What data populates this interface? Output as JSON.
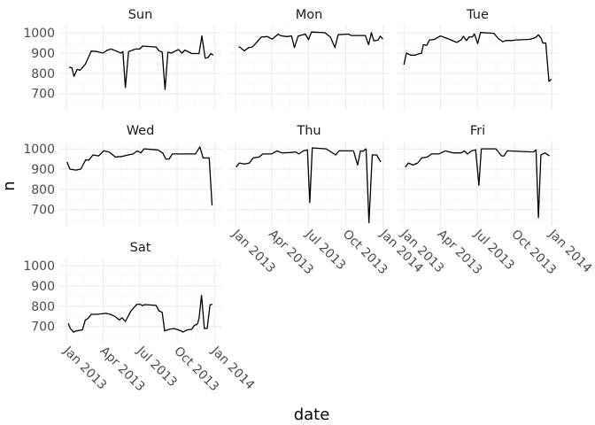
{
  "chart_data": {
    "type": "line",
    "xlabel": "date",
    "ylabel": "n",
    "ylim": [
      620,
      1040
    ],
    "xlim": [
      "2012-12-14",
      "2014-01-18"
    ],
    "yticks": [
      700,
      800,
      900,
      1000
    ],
    "xticks": [
      {
        "date": "2013-01-01",
        "label": "Jan 2013"
      },
      {
        "date": "2013-04-01",
        "label": "Apr 2013"
      },
      {
        "date": "2013-07-01",
        "label": "Jul 2013"
      },
      {
        "date": "2013-10-01",
        "label": "Oct 2013"
      },
      {
        "date": "2014-01-01",
        "label": "Jan 2014"
      }
    ],
    "grid": true,
    "line_color": "#000000",
    "facets": [
      {
        "name": "Sun",
        "x": [
          "2013-01-07",
          "2013-01-14",
          "2013-01-19",
          "2013-01-27",
          "2013-02-03",
          "2013-02-16",
          "2013-03-03",
          "2013-03-17",
          "2013-04-01",
          "2013-04-12",
          "2013-04-21",
          "2013-05-04",
          "2013-05-15",
          "2013-05-20",
          "2013-05-26",
          "2013-06-03",
          "2013-06-09",
          "2013-06-20",
          "2013-06-30",
          "2013-07-08",
          "2013-08-10",
          "2013-08-17",
          "2013-08-25",
          "2013-09-01",
          "2013-09-08",
          "2013-09-16",
          "2013-10-04",
          "2013-10-13",
          "2013-10-20",
          "2013-11-06",
          "2013-11-24",
          "2013-12-01",
          "2013-12-09",
          "2013-12-16",
          "2013-12-23",
          "2013-12-29"
        ],
        "y": [
          830,
          828,
          785,
          820,
          815,
          845,
          910,
          908,
          900,
          915,
          920,
          910,
          900,
          908,
          730,
          908,
          912,
          920,
          920,
          935,
          930,
          912,
          905,
          720,
          905,
          900,
          918,
          900,
          915,
          898,
          898,
          985,
          875,
          878,
          898,
          890
        ]
      },
      {
        "name": "Mon",
        "x": [
          "2013-01-09",
          "2013-01-14",
          "2013-01-23",
          "2013-02-03",
          "2013-02-12",
          "2013-02-20",
          "2013-03-06",
          "2013-03-21",
          "2013-04-02",
          "2013-04-17",
          "2013-04-22",
          "2013-05-07",
          "2013-05-20",
          "2013-05-27",
          "2013-06-05",
          "2013-06-23",
          "2013-07-01",
          "2013-07-08",
          "2013-08-10",
          "2013-08-24",
          "2013-09-04",
          "2013-09-12",
          "2013-10-07",
          "2013-10-14",
          "2013-10-29",
          "2013-11-18",
          "2013-11-26",
          "2013-12-03",
          "2013-12-09",
          "2013-12-19",
          "2013-12-25",
          "2013-12-31"
        ],
        "y": [
          932,
          927,
          911,
          927,
          930,
          947,
          979,
          982,
          969,
          994,
          987,
          982,
          985,
          927,
          984,
          994,
          967,
          1004,
          1001,
          979,
          927,
          991,
          994,
          987,
          987,
          987,
          942,
          1001,
          961,
          964,
          984,
          969
        ]
      },
      {
        "name": "Tue",
        "x": [
          "2013-01-01",
          "2013-01-07",
          "2013-01-18",
          "2013-01-29",
          "2013-02-09",
          "2013-02-13",
          "2013-02-18",
          "2013-02-26",
          "2013-03-05",
          "2013-03-17",
          "2013-04-01",
          "2013-04-12",
          "2013-04-27",
          "2013-05-11",
          "2013-05-22",
          "2013-05-28",
          "2013-06-04",
          "2013-06-11",
          "2013-06-19",
          "2013-06-24",
          "2013-07-02",
          "2013-07-09",
          "2013-08-11",
          "2013-08-22",
          "2013-09-02",
          "2013-09-09",
          "2013-09-24",
          "2013-10-05",
          "2013-11-07",
          "2013-11-14",
          "2013-11-22",
          "2013-11-29",
          "2013-12-06",
          "2013-12-10",
          "2013-12-17",
          "2013-12-25",
          "2013-12-31"
        ],
        "y": [
          843,
          900,
          890,
          890,
          898,
          898,
          942,
          938,
          965,
          968,
          985,
          977,
          965,
          953,
          965,
          983,
          962,
          980,
          980,
          995,
          947,
          1002,
          998,
          972,
          956,
          962,
          962,
          965,
          968,
          972,
          977,
          990,
          972,
          950,
          950,
          760,
          772
        ]
      },
      {
        "name": "Wed",
        "x": [
          "2013-01-02",
          "2013-01-09",
          "2013-01-24",
          "2013-02-05",
          "2013-02-17",
          "2013-02-25",
          "2013-03-07",
          "2013-03-21",
          "2013-04-02",
          "2013-04-16",
          "2013-05-01",
          "2013-05-17",
          "2013-06-02",
          "2013-06-14",
          "2013-06-25",
          "2013-07-03",
          "2013-07-11",
          "2013-08-14",
          "2013-08-26",
          "2013-09-03",
          "2013-09-11",
          "2013-09-19",
          "2013-11-15",
          "2013-11-26",
          "2013-12-04",
          "2013-12-19",
          "2013-12-26"
        ],
        "y": [
          935,
          900,
          895,
          900,
          945,
          945,
          970,
          965,
          990,
          985,
          960,
          962,
          970,
          975,
          990,
          980,
          1000,
          995,
          980,
          950,
          950,
          975,
          975,
          1010,
          955,
          955,
          720
        ]
      },
      {
        "name": "Thu",
        "x": [
          "2013-01-03",
          "2013-01-11",
          "2013-01-24",
          "2013-02-05",
          "2013-02-14",
          "2013-03-01",
          "2013-03-10",
          "2013-03-31",
          "2013-04-14",
          "2013-04-26",
          "2013-05-16",
          "2013-05-30",
          "2013-06-07",
          "2013-06-18",
          "2013-06-28",
          "2013-07-04",
          "2013-07-10",
          "2013-08-13",
          "2013-09-06",
          "2013-09-14",
          "2013-10-20",
          "2013-10-30",
          "2013-11-06",
          "2013-11-12",
          "2013-11-20",
          "2013-11-27",
          "2013-12-05",
          "2013-12-16",
          "2013-12-26"
        ],
        "y": [
          910,
          930,
          925,
          930,
          955,
          960,
          975,
          975,
          990,
          980,
          982,
          985,
          975,
          990,
          995,
          735,
          1005,
          1000,
          970,
          990,
          990,
          920,
          990,
          988,
          1000,
          635,
          970,
          970,
          935
        ]
      },
      {
        "name": "Fri",
        "x": [
          "2013-01-04",
          "2013-01-12",
          "2013-01-23",
          "2013-02-04",
          "2013-02-14",
          "2013-02-28",
          "2013-03-10",
          "2013-03-28",
          "2013-04-13",
          "2013-05-03",
          "2013-05-22",
          "2013-05-30",
          "2013-06-07",
          "2013-06-17",
          "2013-06-27",
          "2013-07-05",
          "2013-07-11",
          "2013-08-16",
          "2013-08-30",
          "2013-09-05",
          "2013-09-13",
          "2013-11-17",
          "2013-11-23",
          "2013-11-29",
          "2013-12-05",
          "2013-12-15",
          "2013-12-26"
        ],
        "y": [
          910,
          930,
          920,
          930,
          955,
          960,
          975,
          975,
          990,
          980,
          980,
          990,
          975,
          990,
          995,
          820,
          1000,
          1000,
          965,
          965,
          990,
          985,
          995,
          660,
          970,
          980,
          965
        ]
      },
      {
        "name": "Sat",
        "x": [
          "2013-01-05",
          "2013-01-10",
          "2013-01-18",
          "2013-01-25",
          "2013-02-09",
          "2013-02-16",
          "2013-02-23",
          "2013-03-03",
          "2013-03-17",
          "2013-04-08",
          "2013-04-19",
          "2013-04-30",
          "2013-05-11",
          "2013-05-18",
          "2013-05-26",
          "2013-06-09",
          "2013-06-24",
          "2013-07-01",
          "2013-07-07",
          "2013-07-13",
          "2013-08-10",
          "2013-08-17",
          "2013-08-25",
          "2013-08-31",
          "2013-09-12",
          "2013-09-23",
          "2013-10-04",
          "2013-10-11",
          "2013-10-15",
          "2013-10-26",
          "2013-11-06",
          "2013-11-12",
          "2013-11-20",
          "2013-11-24",
          "2013-11-30",
          "2013-12-07",
          "2013-12-14",
          "2013-12-21",
          "2013-12-27"
        ],
        "y": [
          715,
          690,
          672,
          678,
          683,
          732,
          740,
          760,
          760,
          765,
          760,
          750,
          732,
          743,
          725,
          777,
          810,
          810,
          803,
          808,
          804,
          777,
          770,
          678,
          686,
          690,
          683,
          678,
          672,
          683,
          686,
          705,
          712,
          740,
          853,
          690,
          690,
          807,
          810
        ]
      }
    ]
  }
}
